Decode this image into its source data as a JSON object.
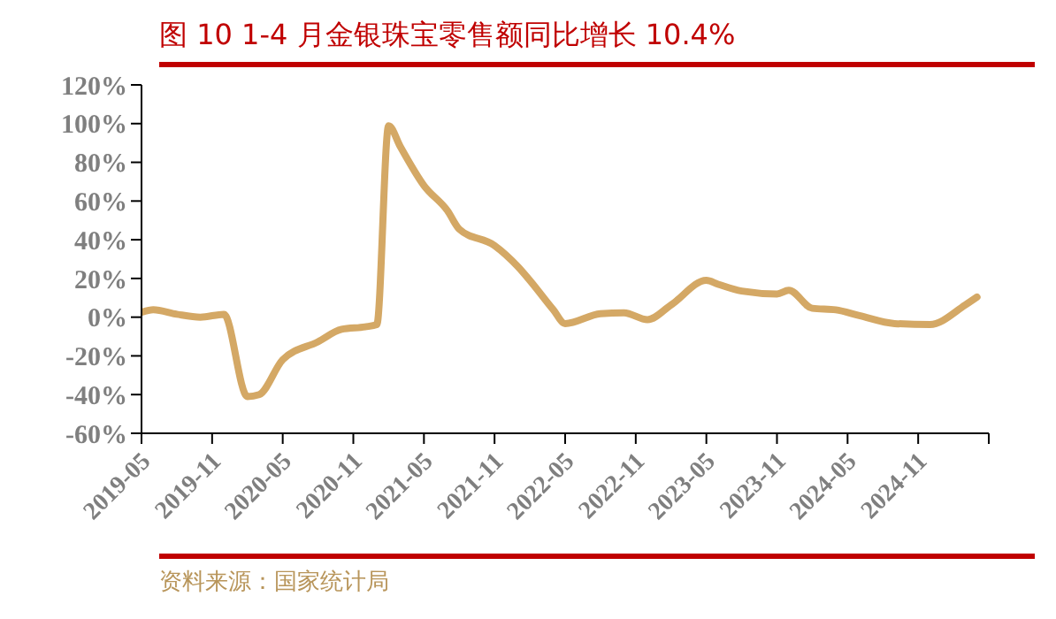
{
  "chart_data": {
    "type": "line",
    "title": "图 10 1-4 月金银珠宝零售额同比增长 10.4%",
    "x": [
      "2019-05",
      "2019-06",
      "2019-08",
      "2019-10",
      "2019-12",
      "2020-02",
      "2020-03",
      "2020-05",
      "2020-08",
      "2020-10",
      "2020-12",
      "2021-01",
      "2021-02",
      "2021-03",
      "2021-05",
      "2021-07",
      "2021-08",
      "2021-11",
      "2022-01",
      "2022-02",
      "2022-04",
      "2022-05",
      "2022-08",
      "2022-10",
      "2022-12",
      "2023-02",
      "2023-05",
      "2023-06",
      "2023-08",
      "2023-11",
      "2023-12",
      "2024-02",
      "2024-04",
      "2024-06",
      "2024-09",
      "2024-12",
      "2025-03",
      "2025-04"
    ],
    "series": [
      {
        "color": "#d4a865",
        "values": [
          2.5,
          3.8,
          1.5,
          0,
          1.5,
          -41,
          -40,
          -22,
          -12.7,
          -6.3,
          -5,
          -3.8,
          98.9,
          88,
          68,
          55,
          45.5,
          37,
          26,
          19,
          3.8,
          -3.3,
          1.8,
          2.3,
          -1.3,
          6.3,
          19,
          17,
          13.5,
          12,
          13.9,
          4.6,
          3.8,
          0.8,
          -3.3,
          -3.8,
          6.3,
          10.4
        ]
      }
    ],
    "xlim": [
      "2019-05",
      "2025-05"
    ],
    "xticks": [
      {
        "value": "2019-05",
        "label": "2019-05"
      },
      {
        "value": "2019-11",
        "label": "2019-11"
      },
      {
        "value": "2020-05",
        "label": "2020-05"
      },
      {
        "value": "2020-11",
        "label": "2020-11"
      },
      {
        "value": "2021-05",
        "label": "2021-05"
      },
      {
        "value": "2021-11",
        "label": "2021-11"
      },
      {
        "value": "2022-05",
        "label": "2022-05"
      },
      {
        "value": "2022-11",
        "label": "2022-11"
      },
      {
        "value": "2023-05",
        "label": "2023-05"
      },
      {
        "value": "2023-11",
        "label": "2023-11"
      },
      {
        "value": "2024-05",
        "label": "2024-05"
      },
      {
        "value": "2024-11",
        "label": "2024-11"
      },
      {
        "value": "2025-05",
        "label": null
      }
    ],
    "ylim": [
      -60,
      120
    ],
    "yticks": [
      {
        "value": -60,
        "label": "-60%"
      },
      {
        "value": -40,
        "label": "-40%"
      },
      {
        "value": -20,
        "label": "-20%"
      },
      {
        "value": 0,
        "label": "0%"
      },
      {
        "value": 20,
        "label": "20%"
      },
      {
        "value": 40,
        "label": "40%"
      },
      {
        "value": 60,
        "label": "60%"
      },
      {
        "value": 80,
        "label": "80%"
      },
      {
        "value": 100,
        "label": "100%"
      },
      {
        "value": 120,
        "label": "120%"
      }
    ],
    "grid": false,
    "legend": false,
    "marker": "none",
    "line_style": "solid",
    "annotations": [
      "资料来源：国家统计局"
    ]
  }
}
